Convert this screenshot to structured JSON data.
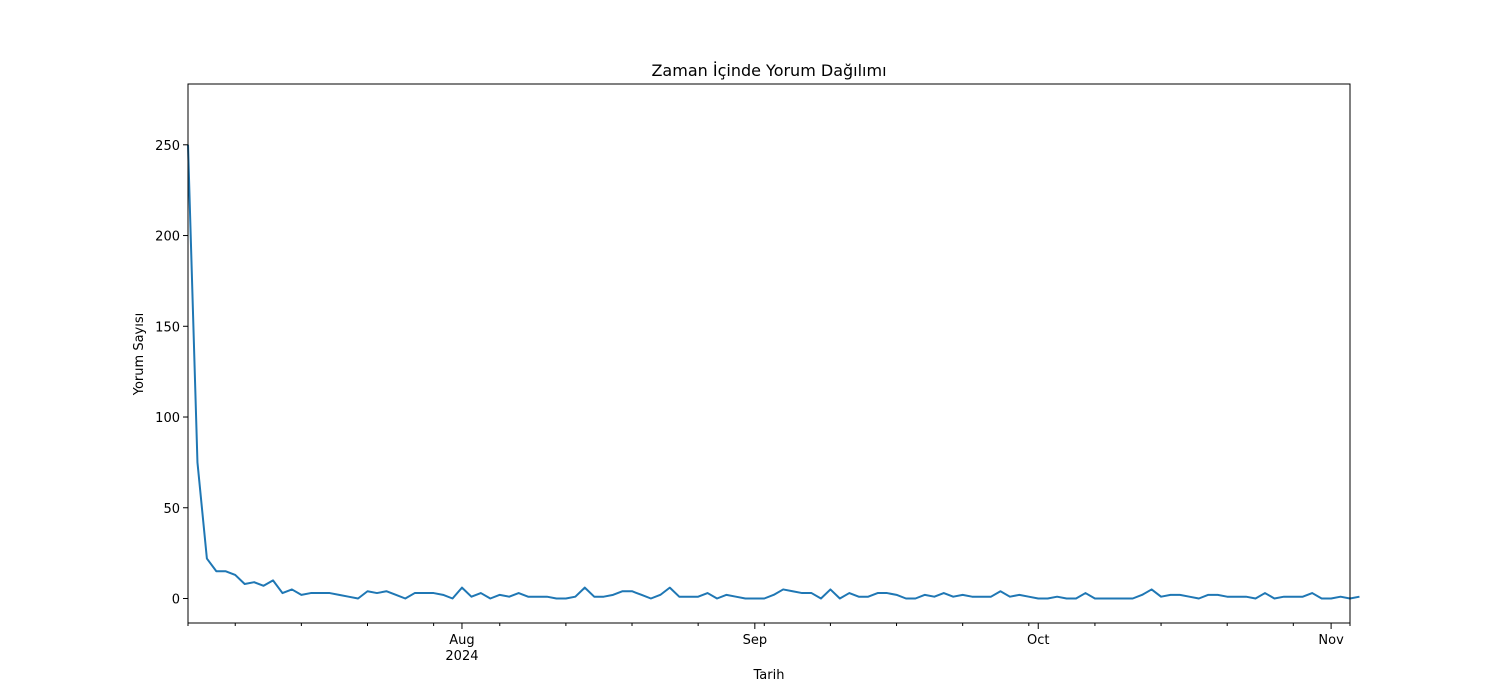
{
  "chart_data": {
    "type": "line",
    "title": "Zaman İçinde Yorum Dağılımı",
    "xlabel": "Tarih",
    "ylabel": "Yorum Sayısı",
    "grid": false,
    "x_start": "2024-07-03",
    "xlim": [
      "2024-07-03",
      "2024-11-03"
    ],
    "ylim": [
      -13.5,
      283.5
    ],
    "y_ticks": [
      0,
      50,
      100,
      150,
      200,
      250
    ],
    "x_major_ticks": [
      {
        "date": "2024-08-01",
        "label": "Aug",
        "sublabel": "2024"
      },
      {
        "date": "2024-09-01",
        "label": "Sep",
        "sublabel": ""
      },
      {
        "date": "2024-10-01",
        "label": "Oct",
        "sublabel": ""
      },
      {
        "date": "2024-11-01",
        "label": "Nov",
        "sublabel": ""
      }
    ],
    "x_minor_ticks": [
      "2024-07-03",
      "2024-07-08",
      "2024-07-15",
      "2024-07-22",
      "2024-07-29",
      "2024-08-05",
      "2024-08-12",
      "2024-08-19",
      "2024-08-26",
      "2024-09-02",
      "2024-09-09",
      "2024-09-16",
      "2024-09-23",
      "2024-09-30",
      "2024-10-07",
      "2024-10-14",
      "2024-10-21",
      "2024-10-28",
      "2024-11-03"
    ],
    "line_color": "#1f77b4",
    "series": [
      {
        "values": [
          250,
          75,
          22,
          15,
          15,
          13,
          8,
          9,
          7,
          10,
          3,
          5,
          2,
          3,
          3,
          3,
          2,
          1,
          0,
          4,
          3,
          4,
          2,
          0,
          3,
          3,
          3,
          2,
          0,
          6,
          1,
          3,
          0,
          2,
          1,
          3,
          1,
          1,
          1,
          0,
          0,
          1,
          6,
          1,
          1,
          2,
          4,
          4,
          2,
          0,
          2,
          6,
          1,
          1,
          1,
          3,
          0,
          2,
          1,
          0,
          0,
          0,
          2,
          5,
          4,
          3,
          3,
          0,
          5,
          0,
          3,
          1,
          1,
          3,
          3,
          2,
          0,
          0,
          2,
          1,
          3,
          1,
          2,
          1,
          1,
          1,
          4,
          1,
          2,
          1,
          0,
          0,
          1,
          0,
          0,
          3,
          0,
          0,
          0,
          0,
          0,
          2,
          5,
          1,
          2,
          2,
          1,
          0,
          2,
          2,
          1,
          1,
          1,
          0,
          3,
          0,
          1,
          1,
          1,
          3,
          0,
          0,
          1,
          0,
          1
        ]
      }
    ]
  }
}
